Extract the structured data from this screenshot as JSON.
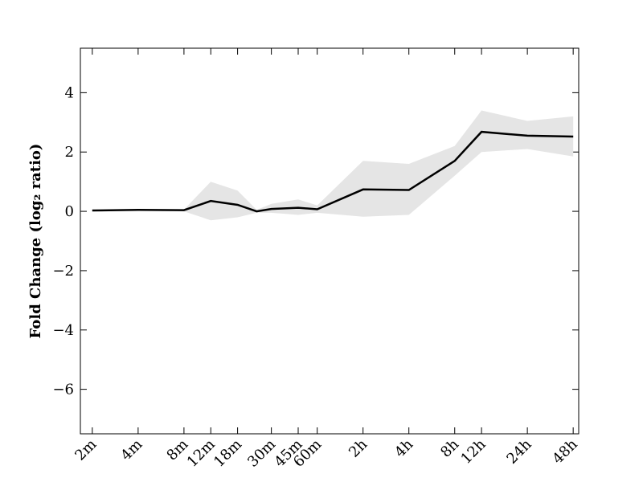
{
  "chart_data": {
    "type": "line",
    "ylabel": "Fold Change (log₂ ratio)",
    "x": [
      2,
      4,
      8,
      12,
      18,
      24,
      30,
      45,
      60,
      120,
      240,
      480,
      720,
      1440,
      2880
    ],
    "series": [
      {
        "color": "#000000",
        "band_color": "#e5e5e5",
        "values": [
          0.03,
          0.05,
          0.04,
          0.35,
          0.22,
          0.0,
          0.08,
          0.12,
          0.07,
          0.74,
          0.72,
          1.7,
          2.68,
          2.55,
          2.52
        ],
        "upper": [
          0.05,
          0.07,
          0.06,
          1.0,
          0.7,
          0.05,
          0.25,
          0.4,
          0.2,
          1.7,
          1.6,
          2.2,
          3.4,
          3.05,
          3.2
        ],
        "lower": [
          0.0,
          0.02,
          0.0,
          -0.3,
          -0.2,
          -0.05,
          -0.05,
          -0.12,
          -0.05,
          -0.18,
          -0.12,
          1.2,
          2.0,
          2.1,
          1.85
        ]
      }
    ],
    "xscale": "log",
    "xlim": [
      1.67,
      3130
    ],
    "xticks": [
      {
        "value": 2,
        "label": "2m"
      },
      {
        "value": 4,
        "label": "4m"
      },
      {
        "value": 8,
        "label": "8m"
      },
      {
        "value": 12,
        "label": "12m"
      },
      {
        "value": 18,
        "label": "18m"
      },
      {
        "value": 30,
        "label": "30m"
      },
      {
        "value": 45,
        "label": "45m"
      },
      {
        "value": 60,
        "label": "60m"
      },
      {
        "value": 120,
        "label": "2h"
      },
      {
        "value": 240,
        "label": "4h"
      },
      {
        "value": 480,
        "label": "8h"
      },
      {
        "value": 720,
        "label": "12h"
      },
      {
        "value": 1440,
        "label": "24h"
      },
      {
        "value": 2880,
        "label": "48h"
      }
    ],
    "ylim": [
      -7.5,
      5.5
    ],
    "yticks": [
      {
        "value": -6,
        "label": "−6"
      },
      {
        "value": -4,
        "label": "−4"
      },
      {
        "value": -2,
        "label": "−2"
      },
      0,
      2,
      4
    ]
  }
}
